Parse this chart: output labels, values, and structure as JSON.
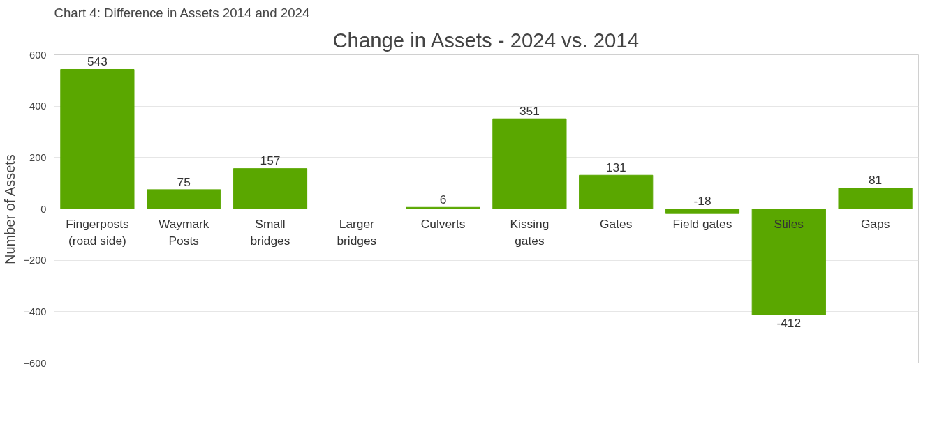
{
  "chart_data": {
    "type": "bar",
    "title": "Change in Assets - 2024 vs. 2014",
    "ylabel": "Number of Assets",
    "annotations": [
      "Chart 4: Difference in Assets 2014 and 2024"
    ],
    "categories": [
      "Fingerposts\n(road side)",
      "Waymark\nPosts",
      "Small\nbridges",
      "Larger\nbridges",
      "Culverts",
      "Kissing\ngates",
      "Gates",
      "Field gates",
      "Stiles",
      "Gaps"
    ],
    "values": [
      543,
      75,
      157,
      null,
      6,
      351,
      131,
      -18,
      -412,
      81
    ],
    "color": "#5aa700",
    "data_labels": true,
    "ylim": [
      -600,
      600
    ],
    "yticks": [
      -600,
      -400,
      -200,
      0,
      200,
      400,
      600
    ],
    "grid": "y"
  }
}
